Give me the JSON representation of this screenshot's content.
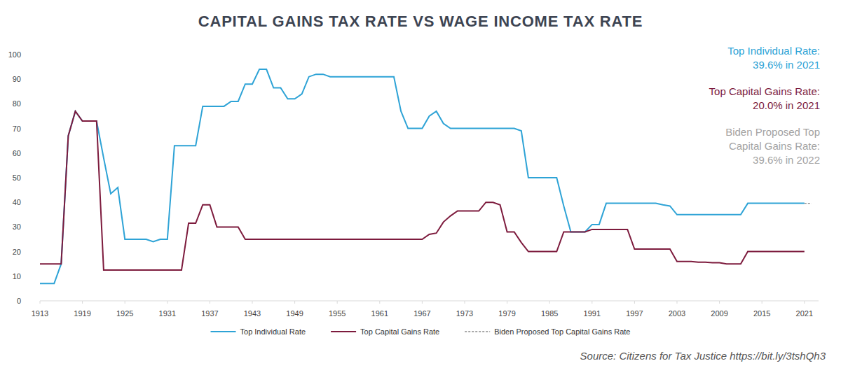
{
  "chart_data": {
    "type": "line",
    "title": "CAPITAL GAINS TAX RATE VS WAGE INCOME TAX RATE",
    "x": [
      1913,
      1914,
      1915,
      1916,
      1917,
      1918,
      1919,
      1920,
      1921,
      1922,
      1923,
      1924,
      1925,
      1926,
      1927,
      1928,
      1929,
      1930,
      1931,
      1932,
      1933,
      1934,
      1935,
      1936,
      1937,
      1938,
      1939,
      1940,
      1941,
      1942,
      1943,
      1944,
      1945,
      1946,
      1947,
      1948,
      1949,
      1950,
      1951,
      1952,
      1953,
      1954,
      1955,
      1956,
      1957,
      1958,
      1959,
      1960,
      1961,
      1962,
      1963,
      1964,
      1965,
      1966,
      1967,
      1968,
      1969,
      1970,
      1971,
      1972,
      1973,
      1974,
      1975,
      1976,
      1977,
      1978,
      1979,
      1980,
      1981,
      1982,
      1983,
      1984,
      1985,
      1986,
      1987,
      1988,
      1989,
      1990,
      1991,
      1992,
      1993,
      1994,
      1995,
      1996,
      1997,
      1998,
      1999,
      2000,
      2001,
      2002,
      2003,
      2004,
      2005,
      2006,
      2007,
      2008,
      2009,
      2010,
      2011,
      2012,
      2013,
      2014,
      2015,
      2016,
      2017,
      2018,
      2019,
      2020,
      2021,
      2022
    ],
    "series": [
      {
        "name": "Top Individual Rate",
        "color": "#2ea3d6",
        "line_style": "solid",
        "values": [
          7,
          7,
          7,
          15,
          67,
          77,
          73,
          73,
          73,
          58,
          43.5,
          46,
          25,
          25,
          25,
          25,
          24,
          25,
          25,
          63,
          63,
          63,
          63,
          79,
          79,
          79,
          79,
          81,
          81,
          88,
          88,
          94,
          94,
          86.5,
          86.5,
          82,
          82,
          84,
          91,
          92,
          92,
          91,
          91,
          91,
          91,
          91,
          91,
          91,
          91,
          91,
          91,
          77,
          70,
          70,
          70,
          75,
          77,
          72,
          70,
          70,
          70,
          70,
          70,
          70,
          70,
          70,
          70,
          70,
          69,
          50,
          50,
          50,
          50,
          50,
          38.5,
          28,
          28,
          28,
          31,
          31,
          39.6,
          39.6,
          39.6,
          39.6,
          39.6,
          39.6,
          39.6,
          39.6,
          39,
          38.5,
          35,
          35,
          35,
          35,
          35,
          35,
          35,
          35,
          35,
          35,
          39.6,
          39.6,
          39.6,
          39.6,
          39.6,
          39.6,
          39.6,
          39.6,
          39.6,
          null
        ]
      },
      {
        "name": "Top Capital Gains Rate",
        "color": "#7d1b3d",
        "line_style": "solid",
        "values": [
          15,
          15,
          15,
          15,
          67,
          77,
          73,
          73,
          73,
          12.5,
          12.5,
          12.5,
          12.5,
          12.5,
          12.5,
          12.5,
          12.5,
          12.5,
          12.5,
          12.5,
          12.5,
          31.5,
          31.5,
          39,
          39,
          30,
          30,
          30,
          30,
          25,
          25,
          25,
          25,
          25,
          25,
          25,
          25,
          25,
          25,
          25,
          25,
          25,
          25,
          25,
          25,
          25,
          25,
          25,
          25,
          25,
          25,
          25,
          25,
          25,
          25,
          27,
          27.5,
          32,
          34.5,
          36.5,
          36.5,
          36.5,
          36.5,
          40,
          40,
          39,
          28,
          28,
          23.7,
          20,
          20,
          20,
          20,
          20,
          28,
          28,
          28,
          28,
          29,
          29,
          29,
          29,
          29,
          29,
          21,
          21,
          21,
          21,
          21,
          21,
          16,
          16,
          16,
          15.7,
          15.7,
          15.5,
          15.5,
          15,
          15,
          15,
          20,
          20,
          20,
          20,
          20,
          20,
          20,
          20,
          20,
          null
        ]
      },
      {
        "name": "Biden Proposed Top Capital Gains Rate",
        "color": "#8a8a8a",
        "line_style": "dashed",
        "values": [
          null,
          null,
          null,
          null,
          null,
          null,
          null,
          null,
          null,
          null,
          null,
          null,
          null,
          null,
          null,
          null,
          null,
          null,
          null,
          null,
          null,
          null,
          null,
          null,
          null,
          null,
          null,
          null,
          null,
          null,
          null,
          null,
          null,
          null,
          null,
          null,
          null,
          null,
          null,
          null,
          null,
          null,
          null,
          null,
          null,
          null,
          null,
          null,
          null,
          null,
          null,
          null,
          null,
          null,
          null,
          null,
          null,
          null,
          null,
          null,
          null,
          null,
          null,
          null,
          null,
          null,
          null,
          null,
          null,
          null,
          null,
          null,
          null,
          null,
          null,
          null,
          null,
          null,
          null,
          null,
          null,
          null,
          null,
          null,
          null,
          null,
          null,
          null,
          null,
          null,
          null,
          null,
          null,
          null,
          null,
          null,
          null,
          null,
          null,
          null,
          null,
          null,
          null,
          null,
          null,
          null,
          null,
          null,
          39.6,
          39.6
        ]
      }
    ],
    "xlim": [
      1913,
      2023
    ],
    "xticks": [
      1913,
      1919,
      1925,
      1931,
      1937,
      1943,
      1949,
      1955,
      1961,
      1967,
      1973,
      1979,
      1985,
      1991,
      1997,
      2003,
      2009,
      2015,
      2021
    ],
    "ylim": [
      0,
      100
    ],
    "yticks": [
      0,
      10,
      20,
      30,
      40,
      50,
      60,
      70,
      80,
      90,
      100
    ],
    "grid": false,
    "legend": "bottom",
    "annotations": [
      {
        "lines": [
          "Top Individual Rate:",
          "39.6% in 2021"
        ],
        "color": "#2ea3d6"
      },
      {
        "lines": [
          "Top Capital Gains Rate:",
          "20.0% in 2021"
        ],
        "color": "#7d1b3d"
      },
      {
        "lines": [
          "Biden Proposed Top",
          "Capital Gains Rate:",
          "39.6% in 2022"
        ],
        "color": "#a3a3a3"
      }
    ],
    "source": "Source: Citizens for Tax Justice https://bit.ly/3tshQh3"
  }
}
